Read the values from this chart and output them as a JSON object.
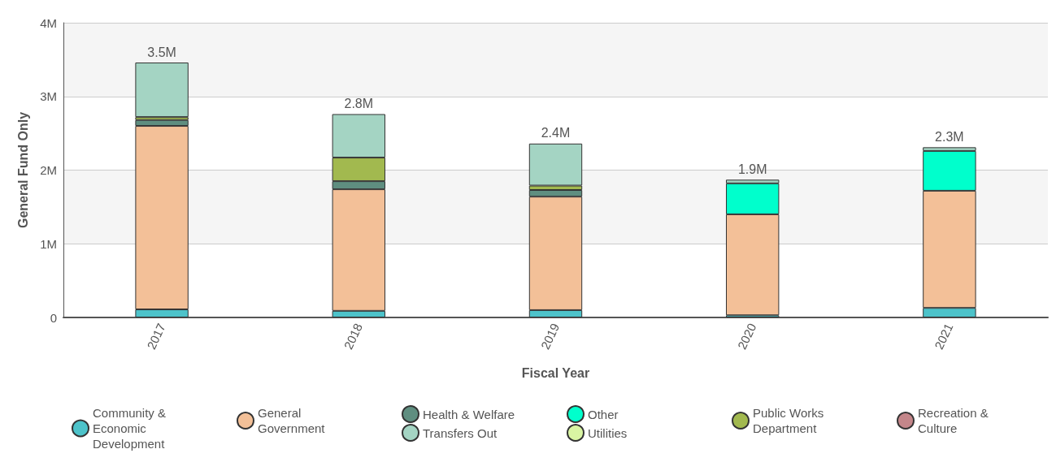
{
  "chart_data": {
    "type": "bar",
    "stacked": true,
    "xlabel": "Fiscal Year",
    "ylabel": "General Fund Only",
    "categories": [
      "2017",
      "2018",
      "2019",
      "2020",
      "2021"
    ],
    "series": [
      {
        "name": "Community & Economic Development",
        "color": "#4dc3ca",
        "values": [
          0.11,
          0.09,
          0.1,
          0.03,
          0.13
        ]
      },
      {
        "name": "General Government",
        "color": "#f3c098",
        "values": [
          2.49,
          1.65,
          1.54,
          1.37,
          1.59
        ]
      },
      {
        "name": "Health & Welfare",
        "color": "#5f8e80",
        "values": [
          0.08,
          0.11,
          0.09,
          null,
          null
        ]
      },
      {
        "name": "Other",
        "color": "#00ffcc",
        "values": [
          null,
          null,
          null,
          0.42,
          0.54
        ]
      },
      {
        "name": "Public Works Department",
        "color": "#a2b94f",
        "values": [
          0.04,
          0.32,
          0.06,
          null,
          null
        ]
      },
      {
        "name": "Recreation & Culture",
        "color": "#c4868a",
        "values": [
          null,
          null,
          null,
          null,
          null
        ]
      },
      {
        "name": "Transfers Out",
        "color": "#a4d4c3",
        "values": [
          0.74,
          0.59,
          0.57,
          0.05,
          0.05
        ]
      },
      {
        "name": "Utilities",
        "color": "#d9f5a3",
        "values": [
          null,
          null,
          null,
          null,
          null
        ]
      }
    ],
    "totals": [
      "3.5M",
      "2.8M",
      "2.4M",
      "1.9M",
      "2.3M"
    ],
    "ylim": [
      0,
      4
    ],
    "yticks": [
      {
        "value": 0,
        "label": "0"
      },
      {
        "value": 1,
        "label": "1M"
      },
      {
        "value": 2,
        "label": "2M"
      },
      {
        "value": 3,
        "label": "3M"
      },
      {
        "value": 4,
        "label": "4M"
      }
    ],
    "grid": "y",
    "legend": "bottom"
  }
}
